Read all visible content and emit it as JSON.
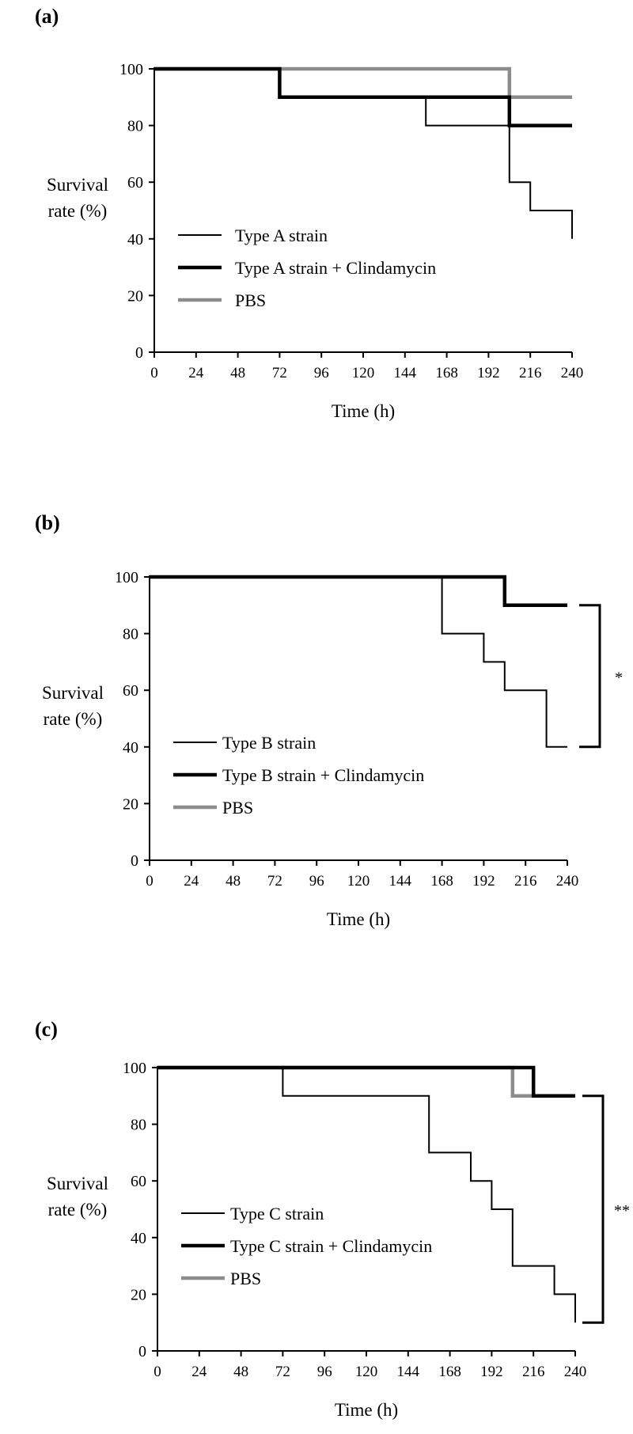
{
  "chart_data": [
    {
      "type": "line",
      "panel_label": "(a)",
      "xlabel": "Time (h)",
      "ylabel": [
        "Survival",
        "rate (%)"
      ],
      "xticks": [
        "0",
        "24",
        "48",
        "72",
        "96",
        "120",
        "144",
        "168",
        "192",
        "216",
        "240"
      ],
      "yticks": [
        "0",
        "20",
        "40",
        "60",
        "80",
        "100"
      ],
      "xlim": [
        0,
        240
      ],
      "ylim": [
        0,
        100
      ],
      "grid": false,
      "legend_position": "bottom-left",
      "series": [
        {
          "name": "Type A strain",
          "color": "#000000",
          "weight": "thin",
          "x": [
            0,
            72,
            72,
            156,
            156,
            204,
            204,
            216,
            216,
            240,
            240
          ],
          "y": [
            100,
            100,
            90,
            90,
            80,
            80,
            60,
            60,
            50,
            50,
            40
          ]
        },
        {
          "name": "Type A strain + Clindamycin",
          "color": "#000000",
          "weight": "thick",
          "x": [
            0,
            72,
            72,
            204,
            204,
            240
          ],
          "y": [
            100,
            100,
            90,
            90,
            80,
            80
          ]
        },
        {
          "name": "PBS",
          "color": "#8c8c8c",
          "weight": "thick",
          "x": [
            0,
            204,
            204,
            240
          ],
          "y": [
            100,
            100,
            90,
            90
          ]
        }
      ],
      "significance": null
    },
    {
      "type": "line",
      "panel_label": "(b)",
      "xlabel": "Time (h)",
      "ylabel": [
        "Survival",
        "rate (%)"
      ],
      "xticks": [
        "0",
        "24",
        "48",
        "72",
        "96",
        "120",
        "144",
        "168",
        "192",
        "216",
        "240"
      ],
      "yticks": [
        "0",
        "20",
        "40",
        "60",
        "80",
        "100"
      ],
      "xlim": [
        0,
        240
      ],
      "ylim": [
        0,
        100
      ],
      "grid": false,
      "legend_position": "bottom-left",
      "series": [
        {
          "name": "Type B strain",
          "color": "#000000",
          "weight": "thin",
          "x": [
            0,
            168,
            168,
            192,
            192,
            204,
            204,
            228,
            228,
            240
          ],
          "y": [
            100,
            100,
            80,
            80,
            70,
            70,
            60,
            60,
            40,
            40
          ]
        },
        {
          "name": "Type B strain + Clindamycin",
          "color": "#000000",
          "weight": "thick",
          "x": [
            0,
            204,
            204,
            240
          ],
          "y": [
            100,
            100,
            90,
            90
          ]
        },
        {
          "name": "PBS",
          "color": "#8c8c8c",
          "weight": "thick",
          "x": [],
          "y": []
        }
      ],
      "significance": {
        "text": "*",
        "from": 90,
        "to": 40
      }
    },
    {
      "type": "line",
      "panel_label": "(c)",
      "xlabel": "Time (h)",
      "ylabel": [
        "Survival",
        "rate (%)"
      ],
      "xticks": [
        "0",
        "24",
        "48",
        "72",
        "96",
        "120",
        "144",
        "168",
        "192",
        "216",
        "240"
      ],
      "yticks": [
        "0",
        "20",
        "40",
        "60",
        "80",
        "100"
      ],
      "xlim": [
        0,
        240
      ],
      "ylim": [
        0,
        100
      ],
      "grid": false,
      "legend_position": "bottom-left",
      "series": [
        {
          "name": "Type C strain",
          "color": "#000000",
          "weight": "thin",
          "x": [
            0,
            72,
            72,
            156,
            156,
            180,
            180,
            192,
            192,
            204,
            204,
            228,
            228,
            240,
            240
          ],
          "y": [
            100,
            100,
            90,
            90,
            70,
            70,
            60,
            60,
            50,
            50,
            30,
            30,
            20,
            20,
            10
          ]
        },
        {
          "name": "Type C strain + Clindamycin",
          "color": "#000000",
          "weight": "thick",
          "x": [
            0,
            216,
            216,
            240
          ],
          "y": [
            100,
            100,
            90,
            90
          ]
        },
        {
          "name": "PBS",
          "color": "#8c8c8c",
          "weight": "thick",
          "x": [
            0,
            204,
            204,
            240
          ],
          "y": [
            100,
            100,
            90,
            90
          ]
        }
      ],
      "significance": {
        "text": "**",
        "from": 90,
        "to": 10
      }
    }
  ]
}
